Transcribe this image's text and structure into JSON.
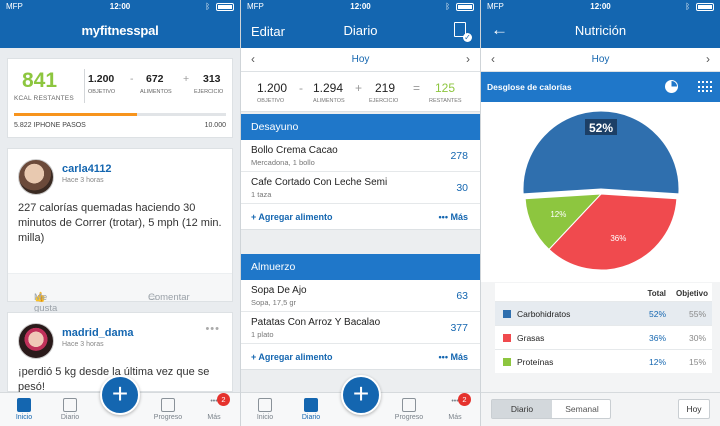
{
  "status": {
    "carrier": "MFP",
    "time": "12:00"
  },
  "screen1": {
    "logo": "myfitnesspal",
    "remaining": "841",
    "remaining_label": "KCAL RESTANTES",
    "goal": "1.200",
    "goal_label": "OBJETIVO",
    "minus": "-",
    "food": "672",
    "food_label": "ALIMENTOS",
    "plus": "+",
    "exercise": "313",
    "exercise_label": "EJERCICIO",
    "steps_label": "5.822 IPHONE PASOS",
    "steps_goal": "10.000",
    "steps_progress": 0.58,
    "posts": [
      {
        "user": "carla4112",
        "time": "Hace 3 horas",
        "text": "227 calorías quemadas haciendo 30 minutos de Correr (trotar), 5 mph (12 min. milla)",
        "like": "Me gusta",
        "comment": "Comentar"
      },
      {
        "user": "madrid_dama",
        "time": "Hace 3 horas",
        "text": "¡perdió 5 kg desde la última vez que se pesó!",
        "more": "•••"
      }
    ],
    "tabs": [
      {
        "label": "Inicio",
        "icon": "home-icon"
      },
      {
        "label": "Diario",
        "icon": "diary-icon"
      },
      {
        "label": "Progreso",
        "icon": "progress-icon"
      },
      {
        "label": "Más",
        "icon": "more-icon",
        "badge": "2"
      }
    ]
  },
  "screen2": {
    "edit": "Editar",
    "title": "Diario",
    "date": "Hoy",
    "arrow_left": "‹",
    "arrow_right": "›",
    "goal": "1.200",
    "goal_label": "OBJETIVO",
    "minus": "-",
    "food": "1.294",
    "food_label": "ALIMENTOS",
    "plus": "+",
    "exercise": "219",
    "exercise_label": "EJERCICIO",
    "equals": "=",
    "remaining": "125",
    "remaining_label": "RESTANTES",
    "breakfast": {
      "title": "Desayuno",
      "items": [
        {
          "name": "Bollo Crema Cacao",
          "sub": "Mercadona, 1 bollo",
          "cal": "278"
        },
        {
          "name": "Cafe Cortado Con Leche Semi",
          "sub": "1 taza",
          "cal": "30"
        }
      ]
    },
    "lunch": {
      "title": "Almuerzo",
      "items": [
        {
          "name": "Sopa De Ajo",
          "sub": "Sopa, 17,5 gr",
          "cal": "63"
        },
        {
          "name": "Patatas Con Arroz Y Bacalao",
          "sub": "1 plato",
          "cal": "377"
        }
      ]
    },
    "add_food": "+ Agregar alimento",
    "more": "••• Más",
    "tabs": [
      {
        "label": "Inicio"
      },
      {
        "label": "Diario"
      },
      {
        "label": "Progreso"
      },
      {
        "label": "Más",
        "badge": "2"
      }
    ]
  },
  "screen3": {
    "back": "←",
    "title": "Nutrición",
    "date": "Hoy",
    "arrow_left": "‹",
    "arrow_right": "›",
    "breakdown_title": "Desglose de calorías",
    "col_total": "Total",
    "col_goal": "Objetivo",
    "chart_data": {
      "type": "pie",
      "title": "",
      "slices": [
        {
          "name": "Carbohidratos",
          "value": 52,
          "label": "52%",
          "color": "#2f6fae"
        },
        {
          "name": "Grasas",
          "value": 36,
          "label": "36%",
          "color": "#f04a4e"
        },
        {
          "name": "Proteínas",
          "value": 12,
          "label": "12%",
          "color": "#8dc63f"
        }
      ]
    },
    "rows": [
      {
        "name": "Carbohidratos",
        "total": "52%",
        "goal": "55%",
        "color": "#2f6fae"
      },
      {
        "name": "Grasas",
        "total": "36%",
        "goal": "30%",
        "color": "#f04a4e"
      },
      {
        "name": "Proteínas",
        "total": "12%",
        "goal": "15%",
        "color": "#8dc63f"
      }
    ],
    "seg_daily": "Diario",
    "seg_weekly": "Semanal",
    "today_btn": "Hoy"
  }
}
